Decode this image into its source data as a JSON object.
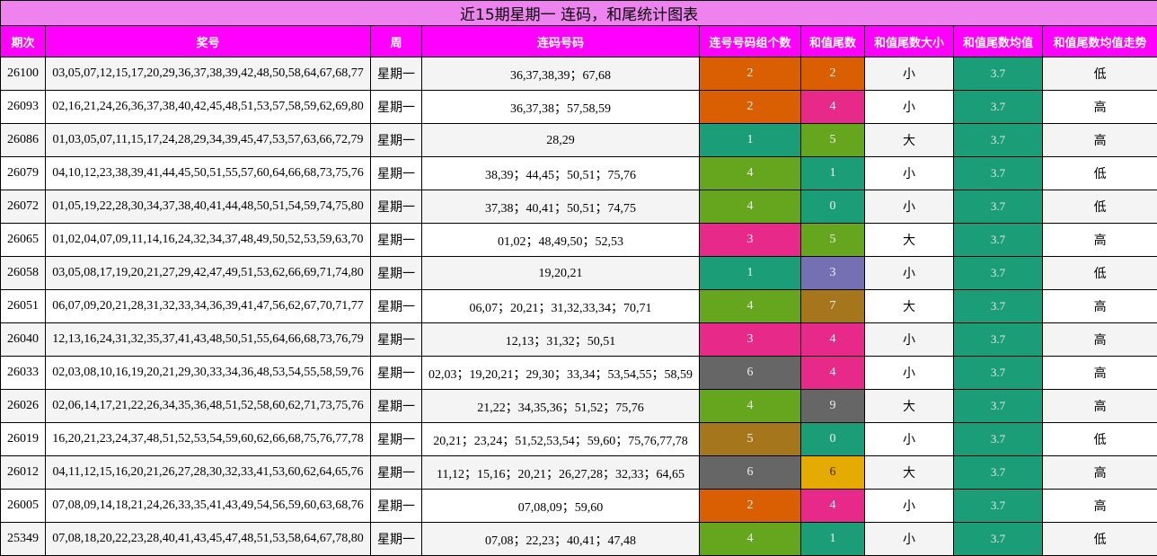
{
  "title": "近15期星期一 连码，和尾统计图表",
  "headers": [
    "期次",
    "奖号",
    "周",
    "连码号码",
    "连号号码组个数",
    "和值尾数",
    "和值尾数大小",
    "和值尾数均值",
    "和值尾数均值走势"
  ],
  "colors": {
    "title_bg": "#EE82EE",
    "header_bg": "#FF00FF",
    "row_odd_bg": "#F4F4F4",
    "row_even_bg": "#FFFFFF",
    "avg_bg": "#1B9E77",
    "value_palette": {
      "0": "#1B9E77",
      "1": "#1B9E77",
      "2": "#D95F02",
      "3": "#7570B3",
      "4": "#E7298A",
      "5": "#66A61E",
      "6": "#E6AB02",
      "7": "#A6761D",
      "9": "#666666"
    },
    "count_palette": {
      "1": "#1B9E77",
      "2": "#D95F02",
      "3": "#E7298A",
      "4": "#66A61E",
      "5": "#A6761D",
      "6": "#666666"
    }
  },
  "rows": [
    {
      "issue": "26100",
      "numbers": "03,05,07,12,15,17,20,29,36,37,38,39,42,48,50,58,64,67,68,77",
      "week": "星期一",
      "lianma": "36,37,38,39；67,68",
      "group_count": "2",
      "count_color": "#D95F02",
      "tail": "2",
      "tail_color": "#D95F02",
      "size": "小",
      "avg": "3.7",
      "trend": "低"
    },
    {
      "issue": "26093",
      "numbers": "02,16,21,24,26,36,37,38,40,42,45,48,51,53,57,58,59,62,69,80",
      "week": "星期一",
      "lianma": "36,37,38；57,58,59",
      "group_count": "2",
      "count_color": "#D95F02",
      "tail": "4",
      "tail_color": "#E7298A",
      "size": "小",
      "avg": "3.7",
      "trend": "高"
    },
    {
      "issue": "26086",
      "numbers": "01,03,05,07,11,15,17,24,28,29,34,39,45,47,53,57,63,66,72,79",
      "week": "星期一",
      "lianma": "28,29",
      "group_count": "1",
      "count_color": "#1B9E77",
      "tail": "5",
      "tail_color": "#66A61E",
      "size": "大",
      "avg": "3.7",
      "trend": "高"
    },
    {
      "issue": "26079",
      "numbers": "04,10,12,23,38,39,41,44,45,50,51,55,57,60,64,66,68,73,75,76",
      "week": "星期一",
      "lianma": "38,39；44,45；50,51；75,76",
      "group_count": "4",
      "count_color": "#66A61E",
      "tail": "1",
      "tail_color": "#1B9E77",
      "size": "小",
      "avg": "3.7",
      "trend": "低"
    },
    {
      "issue": "26072",
      "numbers": "01,05,19,22,28,30,34,37,38,40,41,44,48,50,51,54,59,74,75,80",
      "week": "星期一",
      "lianma": "37,38；40,41；50,51；74,75",
      "group_count": "4",
      "count_color": "#66A61E",
      "tail": "0",
      "tail_color": "#1B9E77",
      "size": "小",
      "avg": "3.7",
      "trend": "低"
    },
    {
      "issue": "26065",
      "numbers": "01,02,04,07,09,11,14,16,24,32,34,37,48,49,50,52,53,59,63,70",
      "week": "星期一",
      "lianma": "01,02；48,49,50；52,53",
      "group_count": "3",
      "count_color": "#E7298A",
      "tail": "5",
      "tail_color": "#66A61E",
      "size": "大",
      "avg": "3.7",
      "trend": "高"
    },
    {
      "issue": "26058",
      "numbers": "03,05,08,17,19,20,21,27,29,42,47,49,51,53,62,66,69,71,74,80",
      "week": "星期一",
      "lianma": "19,20,21",
      "group_count": "1",
      "count_color": "#1B9E77",
      "tail": "3",
      "tail_color": "#7570B3",
      "size": "小",
      "avg": "3.7",
      "trend": "低"
    },
    {
      "issue": "26051",
      "numbers": "06,07,09,20,21,28,31,32,33,34,36,39,41,47,56,62,67,70,71,77",
      "week": "星期一",
      "lianma": "06,07；20,21；31,32,33,34；70,71",
      "group_count": "4",
      "count_color": "#66A61E",
      "tail": "7",
      "tail_color": "#A6761D",
      "size": "大",
      "avg": "3.7",
      "trend": "高"
    },
    {
      "issue": "26040",
      "numbers": "12,13,16,24,31,32,35,37,41,43,48,50,51,55,64,66,68,73,76,79",
      "week": "星期一",
      "lianma": "12,13；31,32；50,51",
      "group_count": "3",
      "count_color": "#E7298A",
      "tail": "4",
      "tail_color": "#E7298A",
      "size": "小",
      "avg": "3.7",
      "trend": "高"
    },
    {
      "issue": "26033",
      "numbers": "02,03,08,10,16,19,20,21,29,30,33,34,36,48,53,54,55,58,59,76",
      "week": "星期一",
      "lianma": "02,03；19,20,21；29,30；33,34；53,54,55；58,59",
      "group_count": "6",
      "count_color": "#666666",
      "tail": "4",
      "tail_color": "#E7298A",
      "size": "小",
      "avg": "3.7",
      "trend": "高"
    },
    {
      "issue": "26026",
      "numbers": "02,06,14,17,21,22,26,34,35,36,48,51,52,58,60,62,71,73,75,76",
      "week": "星期一",
      "lianma": "21,22；34,35,36；51,52；75,76",
      "group_count": "4",
      "count_color": "#66A61E",
      "tail": "9",
      "tail_color": "#666666",
      "size": "大",
      "avg": "3.7",
      "trend": "高"
    },
    {
      "issue": "26019",
      "numbers": "16,20,21,23,24,37,48,51,52,53,54,59,60,62,66,68,75,76,77,78",
      "week": "星期一",
      "lianma": "20,21；23,24；51,52,53,54；59,60；75,76,77,78",
      "group_count": "5",
      "count_color": "#A6761D",
      "tail": "0",
      "tail_color": "#1B9E77",
      "size": "小",
      "avg": "3.7",
      "trend": "低"
    },
    {
      "issue": "26012",
      "numbers": "04,11,12,15,16,20,21,26,27,28,30,32,33,41,53,60,62,64,65,76",
      "week": "星期一",
      "lianma": "11,12；15,16；20,21；26,27,28；32,33；64,65",
      "group_count": "6",
      "count_color": "#666666",
      "tail": "6",
      "tail_color": "#E6AB02",
      "size": "大",
      "avg": "3.7",
      "trend": "高"
    },
    {
      "issue": "26005",
      "numbers": "07,08,09,14,18,21,24,26,33,35,41,43,49,54,56,59,60,63,68,76",
      "week": "星期一",
      "lianma": "07,08,09；59,60",
      "group_count": "2",
      "count_color": "#D95F02",
      "tail": "4",
      "tail_color": "#E7298A",
      "size": "小",
      "avg": "3.7",
      "trend": "高"
    },
    {
      "issue": "25349",
      "numbers": "07,08,18,20,22,23,28,40,41,43,45,47,48,51,53,58,64,67,78,80",
      "week": "星期一",
      "lianma": "07,08；22,23；40,41；47,48",
      "group_count": "4",
      "count_color": "#66A61E",
      "tail": "1",
      "tail_color": "#1B9E77",
      "size": "小",
      "avg": "3.7",
      "trend": "低"
    }
  ]
}
